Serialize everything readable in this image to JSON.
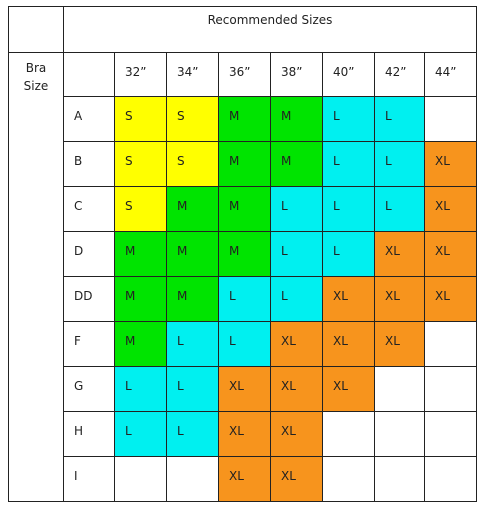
{
  "table": {
    "title": "Recommended Sizes",
    "row_header": "Bra Size",
    "sizes": [
      "32”",
      "34”",
      "36”",
      "38”",
      "40”",
      "42”",
      "44”"
    ],
    "rows": [
      {
        "cup": "A",
        "cells": [
          "S",
          "S",
          "M",
          "M",
          "L",
          "L",
          null
        ]
      },
      {
        "cup": "B",
        "cells": [
          "S",
          "S",
          "M",
          "M",
          "L",
          "L",
          "XL"
        ]
      },
      {
        "cup": "C",
        "cells": [
          "S",
          "M",
          "M",
          "L",
          "L",
          "L",
          "XL"
        ]
      },
      {
        "cup": "D",
        "cells": [
          "M",
          "M",
          "M",
          "L",
          "L",
          "XL",
          "XL"
        ]
      },
      {
        "cup": "DD",
        "cells": [
          "M",
          "M",
          "L",
          "L",
          "XL",
          "XL",
          "XL"
        ]
      },
      {
        "cup": "F",
        "cells": [
          "M",
          "L",
          "L",
          "XL",
          "XL",
          "XL",
          null
        ]
      },
      {
        "cup": "G",
        "cells": [
          "L",
          "L",
          "XL",
          "XL",
          "XL",
          null,
          null
        ]
      },
      {
        "cup": "H",
        "cells": [
          "L",
          "L",
          "XL",
          "XL",
          null,
          null,
          null
        ]
      },
      {
        "cup": "I",
        "cells": [
          null,
          null,
          "XL",
          "XL",
          null,
          null,
          null
        ]
      }
    ]
  },
  "colors": {
    "S": "#ffff00",
    "M": "#00e400",
    "L": "#00f0f0",
    "XL": "#f7941d"
  }
}
